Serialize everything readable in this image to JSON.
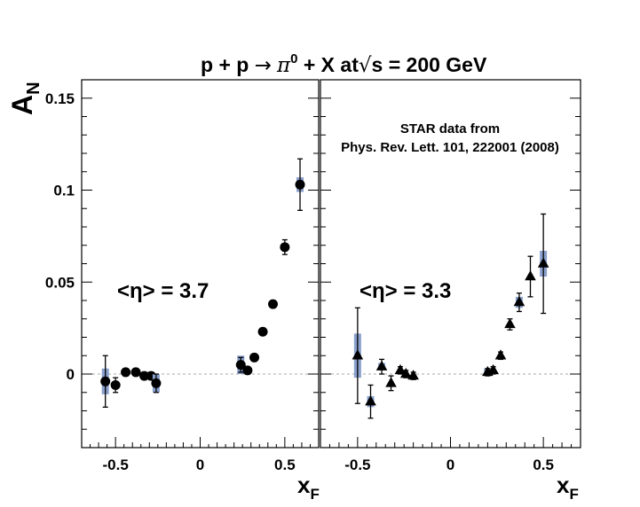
{
  "title": {
    "pre": "p + p ",
    "arrow": "→",
    "pi": "π",
    "pi_sup": "0",
    "mid": " + X at",
    "sqrt": "√",
    "s": "s",
    "post": " = 200 GeV"
  },
  "ylabel": {
    "main": "A",
    "sub": "N"
  },
  "xlabel": {
    "main": "x",
    "sub": "F"
  },
  "annotation": {
    "line1": "STAR data from",
    "line2": "Phys. Rev. Lett. 101, 222001 (2008)"
  },
  "colors": {
    "syst_box": "#8aa0cc",
    "zero_line": "#aaaaaa",
    "markers": "#000000"
  },
  "chart_data": [
    {
      "type": "scatter",
      "panel": "left",
      "annotation": "<η> = 3.7",
      "marker": "circle",
      "xlabel": "x_F",
      "ylabel": "A_N",
      "xlim": [
        -0.7,
        0.7
      ],
      "ylim": [
        -0.04,
        0.16
      ],
      "x_ticks": [
        -0.5,
        0,
        0.5
      ],
      "x_tick_labels": [
        "-0.5",
        "0",
        "0.5"
      ],
      "y_ticks": [
        0,
        0.05,
        0.1,
        0.15
      ],
      "y_tick_labels": [
        "0",
        "0.05",
        "0.1",
        "0.15"
      ],
      "zero_line": true,
      "points": [
        {
          "x": -0.56,
          "y": -0.004,
          "err": 0.014,
          "sys": 0.007
        },
        {
          "x": -0.5,
          "y": -0.006,
          "err": 0.004,
          "sys": 0
        },
        {
          "x": -0.44,
          "y": 0.001,
          "err": 0.002,
          "sys": 0
        },
        {
          "x": -0.38,
          "y": 0.001,
          "err": 0.002,
          "sys": 0
        },
        {
          "x": -0.33,
          "y": -0.001,
          "err": 0.002,
          "sys": 0
        },
        {
          "x": -0.29,
          "y": -0.001,
          "err": 0.002,
          "sys": 0
        },
        {
          "x": -0.26,
          "y": -0.005,
          "err": 0.005,
          "sys": 0.005
        },
        {
          "x": 0.24,
          "y": 0.005,
          "err": 0.004,
          "sys": 0.005
        },
        {
          "x": 0.28,
          "y": 0.002,
          "err": 0.002,
          "sys": 0
        },
        {
          "x": 0.32,
          "y": 0.009,
          "err": 0.002,
          "sys": 0
        },
        {
          "x": 0.37,
          "y": 0.023,
          "err": 0.002,
          "sys": 0
        },
        {
          "x": 0.43,
          "y": 0.038,
          "err": 0.002,
          "sys": 0
        },
        {
          "x": 0.5,
          "y": 0.069,
          "err": 0.004,
          "sys": 0
        },
        {
          "x": 0.59,
          "y": 0.103,
          "err": 0.014,
          "sys": 0.004
        }
      ]
    },
    {
      "type": "scatter",
      "panel": "right",
      "annotation": "<η> = 3.3",
      "marker": "triangle",
      "xlabel": "x_F",
      "ylabel": "A_N",
      "xlim": [
        -0.7,
        0.7
      ],
      "ylim": [
        -0.04,
        0.16
      ],
      "x_ticks": [
        -0.5,
        0,
        0.5
      ],
      "x_tick_labels": [
        "-0.5",
        "0",
        "0.5"
      ],
      "y_ticks": [
        0,
        0.05,
        0.1,
        0.15
      ],
      "y_tick_labels": [],
      "zero_line": true,
      "points": [
        {
          "x": -0.5,
          "y": 0.01,
          "err": 0.026,
          "sys": 0.012
        },
        {
          "x": -0.43,
          "y": -0.015,
          "err": 0.009,
          "sys": 0.003
        },
        {
          "x": -0.37,
          "y": 0.004,
          "err": 0.004,
          "sys": 0.002
        },
        {
          "x": -0.32,
          "y": -0.005,
          "err": 0.004,
          "sys": 0
        },
        {
          "x": -0.27,
          "y": 0.002,
          "err": 0.002,
          "sys": 0
        },
        {
          "x": -0.24,
          "y": -0.0,
          "err": 0.002,
          "sys": 0
        },
        {
          "x": -0.2,
          "y": -0.001,
          "err": 0.002,
          "sys": 0
        },
        {
          "x": 0.2,
          "y": 0.001,
          "err": 0.002,
          "sys": 0.002
        },
        {
          "x": 0.23,
          "y": 0.002,
          "err": 0.002,
          "sys": 0
        },
        {
          "x": 0.27,
          "y": 0.01,
          "err": 0.002,
          "sys": 0
        },
        {
          "x": 0.32,
          "y": 0.027,
          "err": 0.003,
          "sys": 0
        },
        {
          "x": 0.37,
          "y": 0.039,
          "err": 0.005,
          "sys": 0.003
        },
        {
          "x": 0.43,
          "y": 0.053,
          "err": 0.011,
          "sys": 0
        },
        {
          "x": 0.5,
          "y": 0.06,
          "err": 0.027,
          "sys": 0.007
        }
      ]
    }
  ]
}
